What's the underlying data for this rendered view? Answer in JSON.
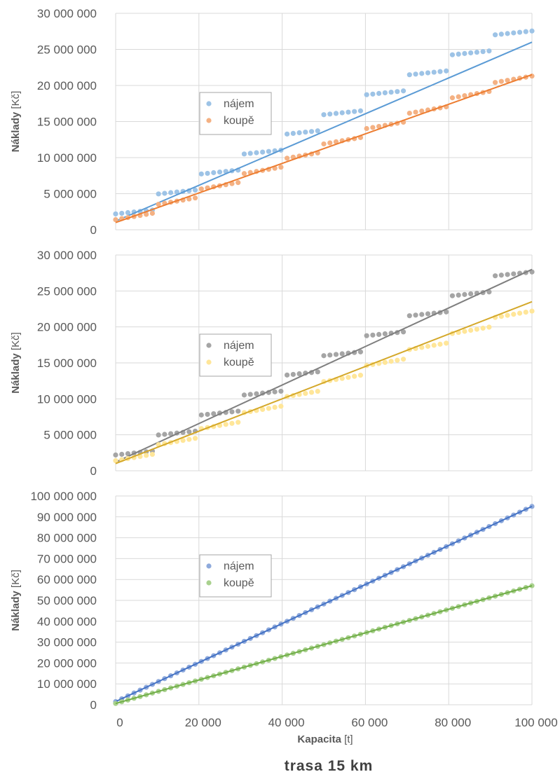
{
  "caption": "trasa 15 km",
  "xlabel_main": "Kapacita",
  "xlabel_unit": "[t]",
  "ylabel_main": "Náklady",
  "ylabel_unit": "[Kč]",
  "x_ticks": [
    "0",
    "20 000",
    "40 000",
    "60 000",
    "80 000",
    "100 000"
  ],
  "chart_data": [
    {
      "type": "scatter",
      "title": "",
      "xlabel": "Kapacita [t]",
      "ylabel": "Náklady [Kč]",
      "xlim": [
        0,
        100000
      ],
      "ylim": [
        0,
        30000000
      ],
      "y_ticks": [
        "0",
        "5 000 000",
        "10 000 000",
        "15 000 000",
        "20 000 000",
        "25 000 000",
        "30 000 000"
      ],
      "grid": true,
      "legend": "center-left",
      "x_step_points": 1000,
      "series": [
        {
          "name": "nájem",
          "color": "#9dc3e6",
          "trend_color": "#5b9bd5",
          "pattern": "step",
          "first": 2200000,
          "step": 2750000,
          "segment_width": 10000,
          "segment_slope": 60,
          "x_start": 0,
          "x_end": 100000,
          "trend": [
            1200000,
            26000000
          ]
        },
        {
          "name": "koupě",
          "color": "#f4b183",
          "trend_color": "#ed7d31",
          "pattern": "step",
          "first": 1400000,
          "step": 2100000,
          "segment_width": 10000,
          "segment_slope": 100,
          "x_start": 0,
          "x_end": 100000,
          "trend": [
            1000000,
            21500000
          ]
        }
      ]
    },
    {
      "type": "scatter",
      "title": "",
      "xlabel": "Kapacita [t]",
      "ylabel": "Náklady [Kč]",
      "xlim": [
        0,
        100000
      ],
      "ylim": [
        0,
        30000000
      ],
      "y_ticks": [
        "0",
        "5 000 000",
        "10 000 000",
        "15 000 000",
        "20 000 000",
        "25 000 000",
        "30 000 000"
      ],
      "grid": true,
      "legend": "center-left",
      "series": [
        {
          "name": "nájem",
          "color": "#a5a5a5",
          "trend_color": "#7f7f7f",
          "pattern": "step",
          "first": 2200000,
          "step": 2760000,
          "segment_width": 10000,
          "segment_slope": 60,
          "x_start": 0,
          "x_end": 100000,
          "trend": [
            1200000,
            28000000
          ]
        },
        {
          "name": "koupě",
          "color": "#ffe699",
          "trend_color": "#d4a82a",
          "pattern": "step",
          "first": 1400000,
          "step": 2200000,
          "segment_width": 10000,
          "segment_slope": 100,
          "x_start": 0,
          "x_end": 100000,
          "trend": [
            1000000,
            23500000
          ]
        }
      ]
    },
    {
      "type": "scatter",
      "title": "",
      "xlabel": "Kapacita [t]",
      "ylabel": "Náklady [Kč]",
      "xlim": [
        0,
        100000
      ],
      "ylim": [
        0,
        100000000
      ],
      "y_ticks": [
        "0",
        "10 000 000",
        "20 000 000",
        "30 000 000",
        "40 000 000",
        "50 000 000",
        "60 000 000",
        "70 000 000",
        "80 000 000",
        "90 000 000",
        "100 000 000"
      ],
      "grid": true,
      "legend": "center-left",
      "series": [
        {
          "name": "nájem",
          "color": "#8faadc",
          "trend_color": "#4472c4",
          "pattern": "linear",
          "x_start": 0,
          "x_end": 100000,
          "trend": [
            1500000,
            95000000
          ]
        },
        {
          "name": "koupě",
          "color": "#a9d18e",
          "trend_color": "#70ad47",
          "pattern": "linear",
          "x_start": 0,
          "x_end": 100000,
          "trend": [
            600000,
            57000000
          ]
        }
      ]
    }
  ]
}
